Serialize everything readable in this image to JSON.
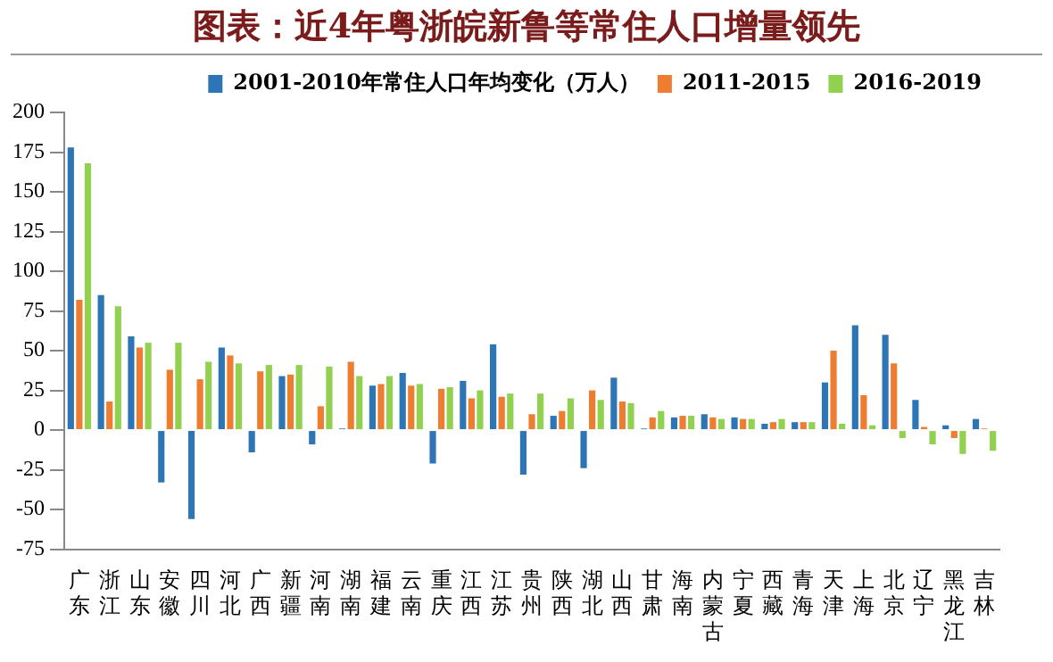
{
  "chart_data": {
    "type": "bar",
    "title": "图表：近4年粤浙皖新鲁等常住人口增量领先",
    "categories": [
      "广东",
      "浙江",
      "山东",
      "安徽",
      "四川",
      "河北",
      "广西",
      "新疆",
      "河南",
      "湖南",
      "福建",
      "云南",
      "重庆",
      "江西",
      "江苏",
      "贵州",
      "陕西",
      "湖北",
      "山西",
      "甘肃",
      "海南",
      "内蒙古",
      "宁夏",
      "西藏",
      "青海",
      "天津",
      "上海",
      "北京",
      "辽宁",
      "黑龙江",
      "吉林"
    ],
    "series": [
      {
        "name": "2001-2010年常住人口年均变化（万人）",
        "color": "#2e75b6",
        "values": [
          178,
          85,
          59,
          -33,
          -56,
          52,
          -14,
          34,
          -9,
          1,
          28,
          36,
          -21,
          31,
          54,
          -28,
          9,
          -24,
          33,
          1,
          8,
          10,
          8,
          4,
          5,
          30,
          66,
          60,
          19,
          3,
          7
        ]
      },
      {
        "name": "2011-2015",
        "color": "#ed7d31",
        "values": [
          82,
          18,
          52,
          38,
          32,
          47,
          37,
          35,
          15,
          43,
          29,
          28,
          26,
          20,
          21,
          10,
          12,
          25,
          18,
          8,
          9,
          8,
          7,
          5,
          5,
          50,
          22,
          42,
          2,
          -5,
          1
        ]
      },
      {
        "name": "2016-2019",
        "color": "#92d050",
        "values": [
          168,
          78,
          55,
          55,
          43,
          42,
          41,
          41,
          40,
          34,
          34,
          29,
          27,
          25,
          23,
          23,
          20,
          19,
          17,
          12,
          9,
          7,
          7,
          7,
          5,
          4,
          3,
          -5,
          -9,
          -15,
          -13
        ]
      }
    ],
    "ylim": [
      -75,
      200
    ],
    "yticks": [
      -75,
      -50,
      -25,
      0,
      25,
      50,
      75,
      100,
      125,
      150,
      175,
      200
    ],
    "grid": false,
    "legend": "top"
  }
}
